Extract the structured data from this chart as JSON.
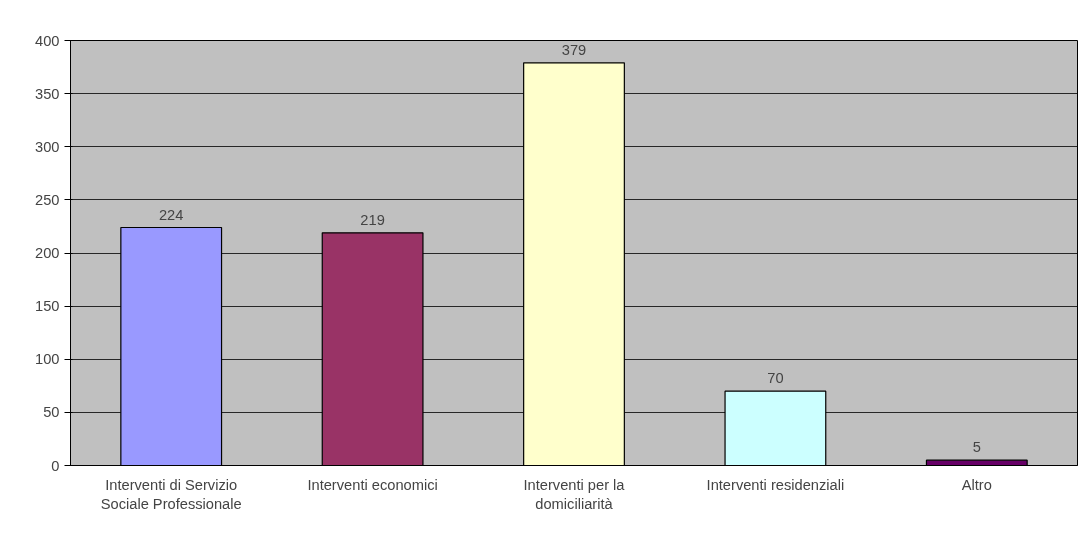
{
  "chart_data": {
    "type": "bar",
    "categories": [
      "Interventi di Servizio Sociale Professionale",
      "Interventi economici",
      "Interventi per la domiciliarità",
      "Interventi residenziali",
      "Altro"
    ],
    "values": [
      224,
      219,
      379,
      70,
      5
    ],
    "colors": [
      "#9999ff",
      "#993366",
      "#ffffcc",
      "#ccffff",
      "#660066"
    ],
    "ylim": [
      0,
      400
    ],
    "yticks": [
      0,
      50,
      100,
      150,
      200,
      250,
      300,
      350,
      400
    ],
    "grid": "y",
    "data_labels": true
  }
}
